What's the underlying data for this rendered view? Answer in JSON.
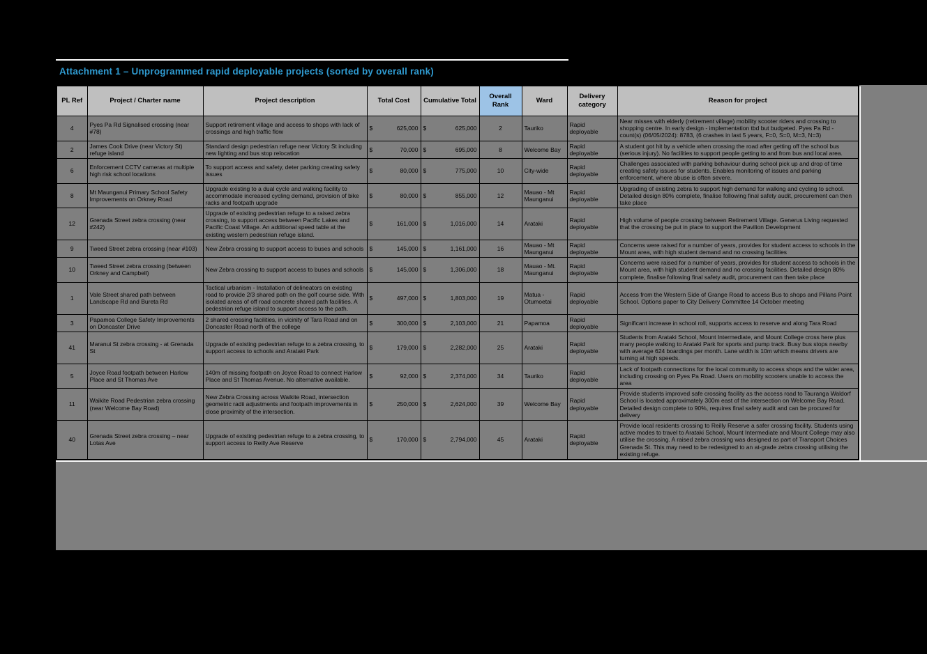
{
  "page": {
    "title": "Attachment 1 – Unprogrammed rapid deployable projects (sorted by overall rank)",
    "colors": {
      "title_blue": "#2f9ad0",
      "header_bg": "#bfbfbf",
      "rank_header_bg": "#9dc3e6",
      "cell_bg": "#7f7f7f",
      "background": "#000000"
    }
  },
  "table": {
    "currency_symbol": "$",
    "columns": [
      "PL Ref",
      "Project / Charter name",
      "Project description",
      "Total Cost",
      "Cumulative Total",
      "Overall Rank",
      "Ward",
      "Delivery category",
      "Reason for project"
    ],
    "rows": [
      {
        "pl_ref": "4",
        "name": "Pyes Pa Rd Signalised crossing (near #78)",
        "description": "Support retirement village and access to shops with lack of crossings and high traffic flow",
        "total_cost": "625,000",
        "cumulative_total": "625,000",
        "overall_rank": "2",
        "ward": "Tauriko",
        "delivery_category": "Rapid deployable",
        "reason": "Near misses with elderly (retirement village) mobility scooter riders and crossing to shopping centre. In early design - implementation tbd but budgeted. Pyes Pa Rd - count(s) (06/05/2024): 8783, (6 crashes in last 5 years, F=0, S=0, M=3, N=3)"
      },
      {
        "pl_ref": "2",
        "name": "James Cook Drive (near Victory St) refuge island",
        "description": "Standard design pedestrian refuge near Victory St including new lighting and bus stop relocation",
        "total_cost": "70,000",
        "cumulative_total": "695,000",
        "overall_rank": "8",
        "ward": "Welcome Bay",
        "delivery_category": "Rapid deployable",
        "reason": "A student got hit by a vehicle when crossing the road after getting off the school bus (serious injury). No facilities to support people getting to and from bus and local area."
      },
      {
        "pl_ref": "6",
        "name": "Enforcement CCTV cameras at multiple high risk school locations",
        "description": "To support access and safety, deter parking creating safety issues",
        "total_cost": "80,000",
        "cumulative_total": "775,000",
        "overall_rank": "10",
        "ward": "City-wide",
        "delivery_category": "Rapid deployable",
        "reason": "Challenges associated with parking behaviour during school pick up and drop of time creating safety issues for students. Enables monitoring of issues and parking enforcement, where abuse is often severe."
      },
      {
        "pl_ref": "8",
        "name": "Mt Maunganui Primary School Safety Improvements on Orkney Road",
        "description": "Upgrade existing to a dual cycle and walking facility to accommodate increased cycling demand, provision of bike racks and footpath upgrade",
        "total_cost": "80,000",
        "cumulative_total": "855,000",
        "overall_rank": "12",
        "ward": "Mauao - Mt Maunganui",
        "delivery_category": "Rapid deployable",
        "reason": "Upgrading of existing zebra to support high demand for walking and cycling to school. Detailed design 80% complete, finalise following final safety audit, procurement can then take place"
      },
      {
        "pl_ref": "12",
        "name": "Grenada Street zebra crossing (near #242)",
        "description": "Upgrade of existing pedestrian refuge to a raised zebra crossing, to support access between Pacific Lakes and Pacific Coast Village. An additional speed table at the existing western pedestrian refuge island.",
        "total_cost": "161,000",
        "cumulative_total": "1,016,000",
        "overall_rank": "14",
        "ward": "Arataki",
        "delivery_category": "Rapid deployable",
        "reason": "High volume of people crossing between Retirement Village. Generus Living requested that the crossing be put in place to support the Pavilion Development"
      },
      {
        "pl_ref": "9",
        "name": "Tweed Street zebra crossing (near #103)",
        "description": "New Zebra crossing to support access to buses and schools",
        "total_cost": "145,000",
        "cumulative_total": "1,161,000",
        "overall_rank": "16",
        "ward": "Mauao - Mt Maunganui",
        "delivery_category": "Rapid deployable",
        "reason": "Concerns were raised for a number of years, provides for student access to schools in the Mount area, with high student demand and no crossing facilities"
      },
      {
        "pl_ref": "10",
        "name": "Tweed Street zebra crossing (between Orkney and Campbell)",
        "description": "New Zebra crossing to support access to buses and schools",
        "total_cost": "145,000",
        "cumulative_total": "1,306,000",
        "overall_rank": "18",
        "ward": "Mauao - Mt. Maunganui",
        "delivery_category": "Rapid deployable",
        "reason": "Concerns were raised for a number of years, provides for student access to schools in the Mount area, with high student demand and no crossing facilities. Detailed design 80% complete, finalise following final safety audit, procurement can then take place"
      },
      {
        "pl_ref": "1",
        "name": "Vale Street shared path between Landscape Rd and Bureta Rd",
        "description": "Tactical urbanism - Installation of delineators on existing road to provide 2/3 shared path on the golf course side. With isolated areas of off road concrete shared path facilities. A pedestrian refuge island to support access to the path.",
        "total_cost": "497,000",
        "cumulative_total": "1,803,000",
        "overall_rank": "19",
        "ward": "Matua - Otumoetai",
        "delivery_category": "Rapid deployable",
        "reason": "Access from the Western Side of Grange Road to access Bus to shops and Pillans Point School. Options paper to City Delivery Committee 14 October meeting"
      },
      {
        "pl_ref": "3",
        "name": "Papamoa College Safety Improvements on Doncaster Drive",
        "description": "2 shared crossing facilities, in vicinity of Tara Road and on Doncaster Road north of the college",
        "total_cost": "300,000",
        "cumulative_total": "2,103,000",
        "overall_rank": "21",
        "ward": "Papamoa",
        "delivery_category": "Rapid deployable",
        "reason": "Significant increase in school roll, supports access to reserve and along Tara Road"
      },
      {
        "pl_ref": "41",
        "name": "Maranui St zebra crossing - at Grenada St",
        "description": "Upgrade of existing pedestrian refuge to a zebra crossing, to support access to schools and Arataki Park",
        "total_cost": "179,000",
        "cumulative_total": "2,282,000",
        "overall_rank": "25",
        "ward": "Arataki",
        "delivery_category": "Rapid deployable",
        "reason": "Students from Arataki School, Mount Intermediate, and Mount College cross here plus many people walking to Arataki Park for sports and pump track. Busy bus stops nearby with average 624 boardings per month. Lane width is 10m which means drivers are turning at high speeds."
      },
      {
        "pl_ref": "5",
        "name": "Joyce Road footpath between Harlow Place and St Thomas Ave",
        "description": "140m of missing footpath on Joyce Road to connect Harlow Place and St Thomas Avenue. No alternative available.",
        "total_cost": "92,000",
        "cumulative_total": "2,374,000",
        "overall_rank": "34",
        "ward": "Tauriko",
        "delivery_category": "Rapid deployable",
        "reason": "Lack of footpath connections for the local community to access shops and the wider area, including crossing on Pyes Pa Road. Users on mobility scooters unable to access the area"
      },
      {
        "pl_ref": "11",
        "name": "Waikite Road Pedestrian zebra crossing (near Welcome Bay Road)",
        "description": "New Zebra Crossing across Waikite Road, intersection geometric radii adjustments and footpath improvements in close proximity of the intersection.",
        "total_cost": "250,000",
        "cumulative_total": "2,624,000",
        "overall_rank": "39",
        "ward": "Welcome Bay",
        "delivery_category": "Rapid deployable",
        "reason": "Provide students improved safe crossing facility as the access road to Tauranga Waldorf School is located approximately 300m east of the intersection on Welcome Bay Road. Detailed design complete to 90%, requires final safety audit and can be procured for delivery"
      },
      {
        "pl_ref": "40",
        "name": "Grenada Street zebra crossing – near Lotas Ave",
        "description": "Upgrade of existing pedestrian refuge to a zebra crossing, to support access to Reilly Ave Reserve",
        "total_cost": "170,000",
        "cumulative_total": "2,794,000",
        "overall_rank": "45",
        "ward": "Arataki",
        "delivery_category": "Rapid deployable",
        "reason": "Provide local residents crossing to Reilly Reserve a safer crossing facility. Students using active modes to travel to Arataki School, Mount Intermediate and Mount College may also utilise the crossing. A raised zebra crossing was designed as part of Transport Choices Grenada St. This may need to be redesigned to an at-grade zebra crossing utilising the existing refuge."
      }
    ]
  }
}
